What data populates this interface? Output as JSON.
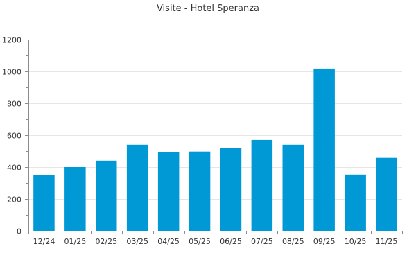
{
  "chart_data": {
    "type": "bar",
    "title": "Visite - Hotel Speranza",
    "xlabel": "",
    "ylabel": "",
    "categories": [
      "12/24",
      "01/25",
      "02/25",
      "03/25",
      "04/25",
      "05/25",
      "06/25",
      "07/25",
      "08/25",
      "09/25",
      "10/25",
      "11/25"
    ],
    "values": [
      348,
      400,
      440,
      540,
      492,
      497,
      518,
      570,
      540,
      1018,
      353,
      458
    ],
    "ylim": [
      0,
      1200
    ],
    "yticks": [
      0,
      200,
      400,
      600,
      800,
      1000,
      1200
    ],
    "grid": true,
    "bar_color": "#0099d6"
  }
}
